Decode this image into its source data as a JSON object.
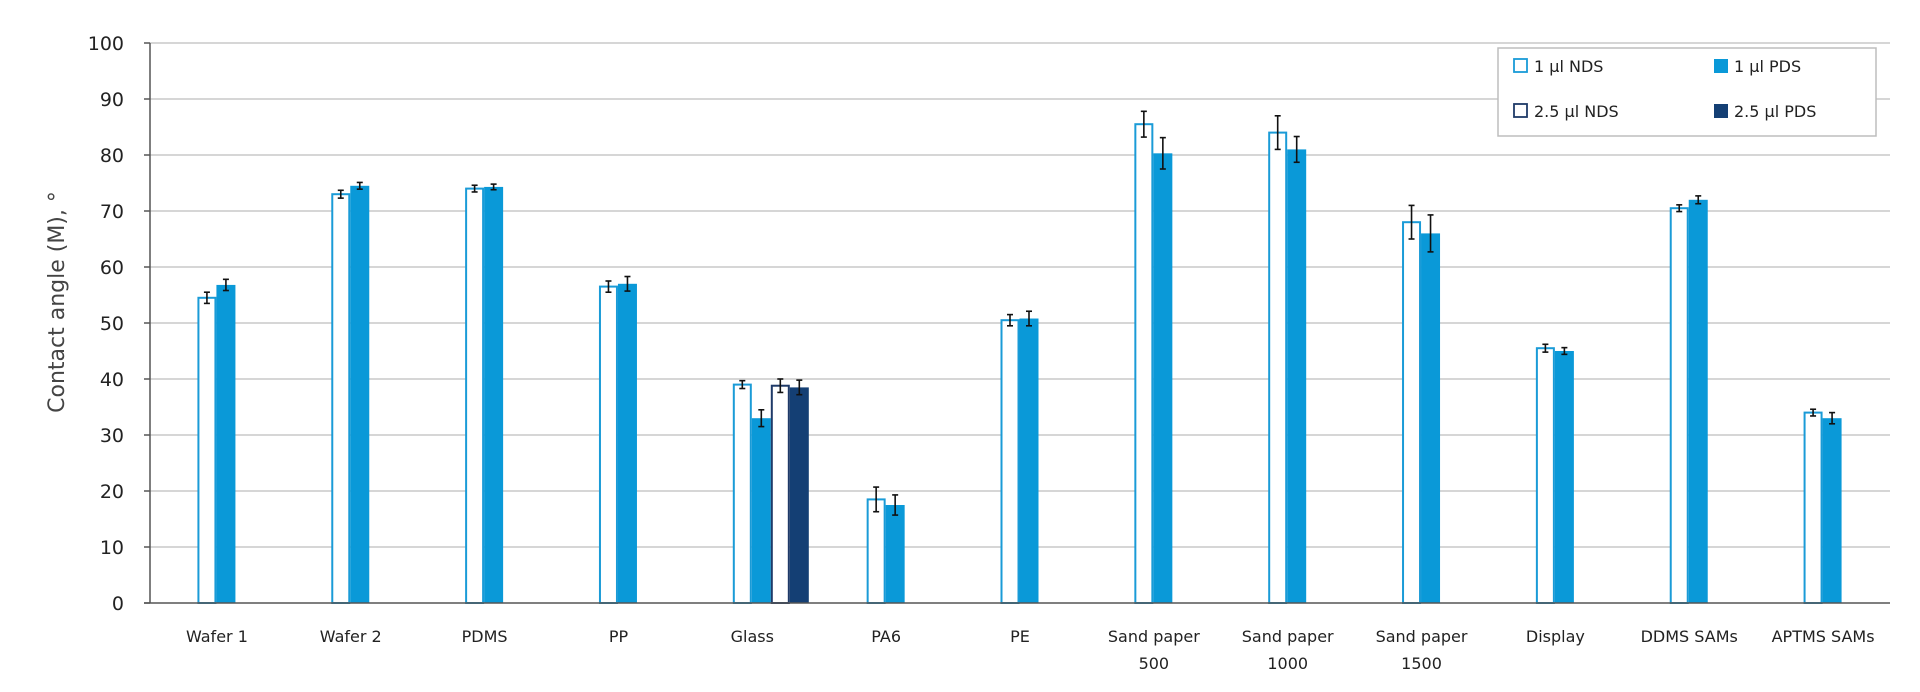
{
  "chart_data": {
    "type": "bar",
    "ylabel": "Contact angle (M), °",
    "xlabel": "",
    "ylim": [
      0,
      100
    ],
    "yticks": [
      0,
      10,
      20,
      30,
      40,
      50,
      60,
      70,
      80,
      90,
      100
    ],
    "grid": true,
    "legend_position": "top-right",
    "categories": [
      [
        "Wafer 1"
      ],
      [
        "Wafer 2"
      ],
      [
        "PDMS"
      ],
      [
        "PP"
      ],
      [
        "Glass"
      ],
      [
        "PA6"
      ],
      [
        "PE"
      ],
      [
        "Sand paper",
        "500"
      ],
      [
        "Sand paper",
        "1000"
      ],
      [
        "Sand paper",
        "1500"
      ],
      [
        "Display"
      ],
      [
        "DDMS SAMs"
      ],
      [
        "APTMS SAMs"
      ]
    ],
    "series": [
      {
        "name": "1 μl  NDS",
        "style": "outline",
        "color": "#1a9bd7",
        "values": [
          54.5,
          73.0,
          74.0,
          56.5,
          39.0,
          18.5,
          50.5,
          85.5,
          84.0,
          68.0,
          45.5,
          70.5,
          34.0
        ],
        "errors": [
          1.0,
          0.7,
          0.6,
          1.0,
          0.7,
          2.2,
          1.0,
          2.3,
          3.0,
          3.0,
          0.7,
          0.6,
          0.6
        ]
      },
      {
        "name": "1 μl  PDS",
        "style": "filled",
        "color": "#0a99d8",
        "values": [
          56.8,
          74.5,
          74.3,
          57.0,
          33.0,
          17.5,
          50.8,
          80.3,
          81.0,
          66.0,
          45.0,
          72.0,
          33.0
        ],
        "errors": [
          1.0,
          0.6,
          0.5,
          1.3,
          1.5,
          1.8,
          1.3,
          2.8,
          2.3,
          3.3,
          0.6,
          0.7,
          1.0
        ]
      },
      {
        "name": "2.5 μl  NDS",
        "style": "outline",
        "color": "#1f3a68",
        "values": [
          null,
          null,
          null,
          null,
          38.8,
          null,
          null,
          null,
          null,
          null,
          null,
          null,
          null
        ],
        "errors": [
          null,
          null,
          null,
          null,
          1.2,
          null,
          null,
          null,
          null,
          null,
          null,
          null,
          null
        ]
      },
      {
        "name": "2.5 μl  PDS",
        "style": "filled",
        "color": "#143f74",
        "values": [
          null,
          null,
          null,
          null,
          38.5,
          null,
          null,
          null,
          null,
          null,
          null,
          null,
          null
        ],
        "errors": [
          null,
          null,
          null,
          null,
          1.3,
          null,
          null,
          null,
          null,
          null,
          null,
          null,
          null
        ]
      }
    ]
  }
}
